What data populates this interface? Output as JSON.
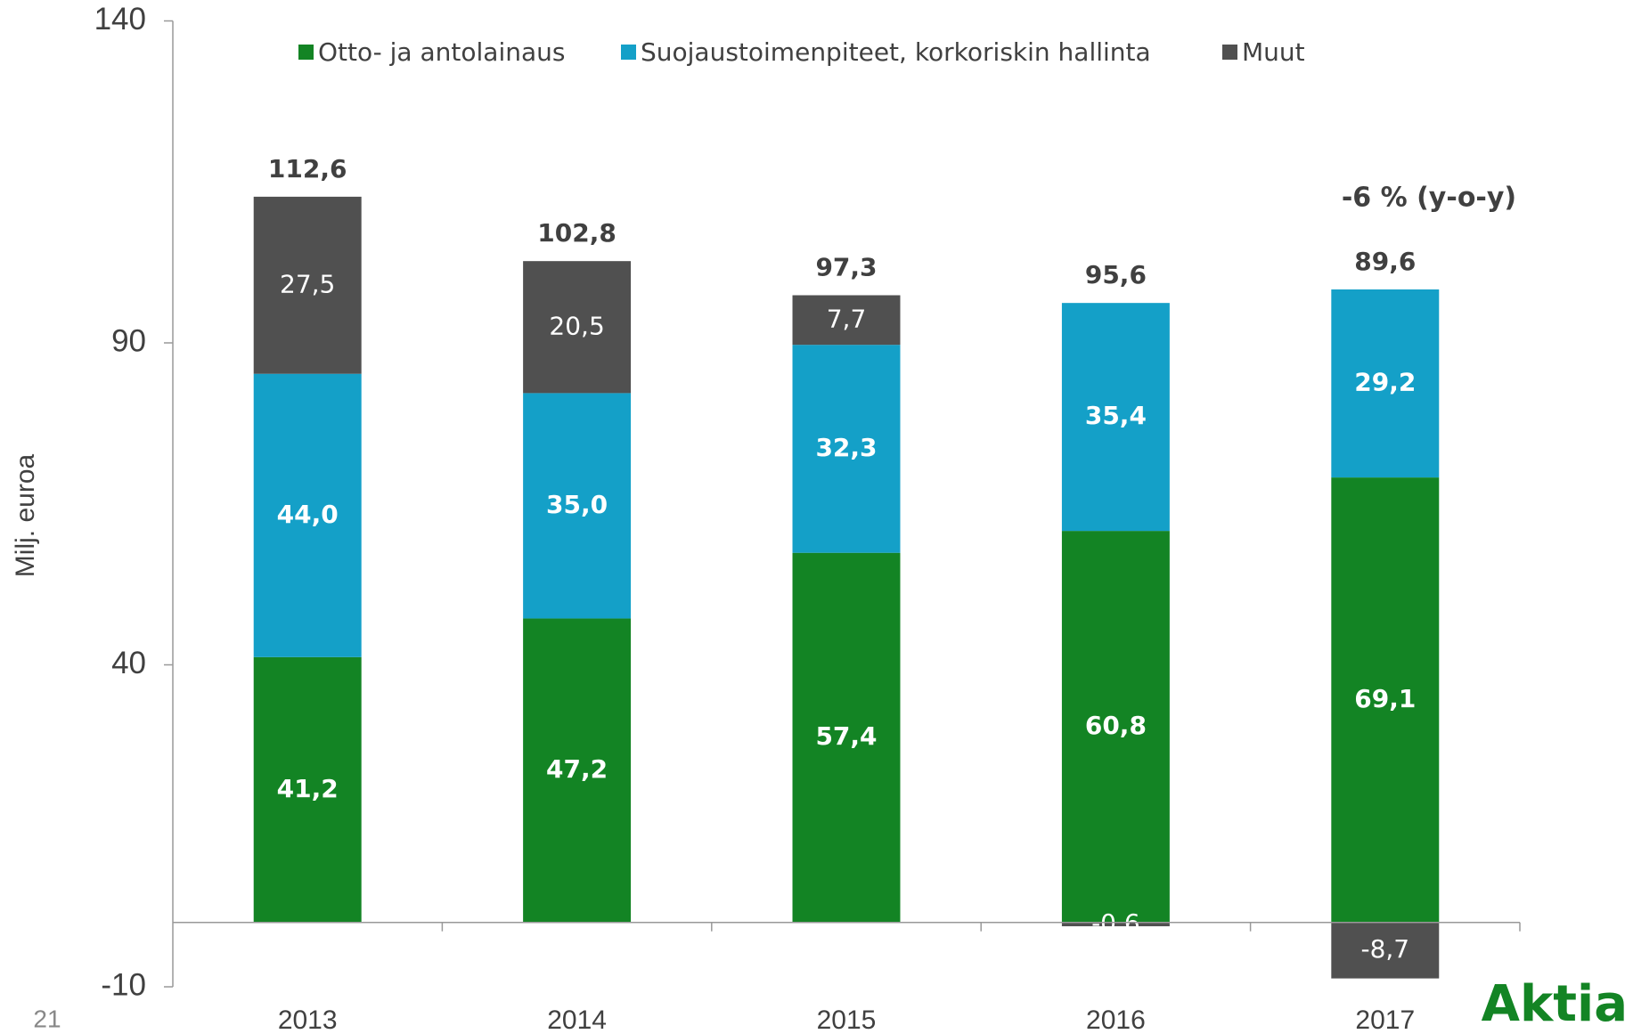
{
  "chart_data": {
    "type": "stacked_bar",
    "y_label": "Milj. euroa",
    "categories": [
      "2013",
      "2014",
      "2015",
      "2016",
      "2017"
    ],
    "series": [
      {
        "name": "Otto- ja antolainaus",
        "color": "#138424",
        "values": [
          41.2,
          47.2,
          57.4,
          60.8,
          69.1
        ],
        "value_labels": [
          "41,2",
          "47,2",
          "57,4",
          "60,8",
          "69,1"
        ]
      },
      {
        "name": "Suojaustoimenpiteet, korkoriskin hallinta",
        "color": "#14a0c8",
        "values": [
          44.0,
          35.0,
          32.3,
          35.4,
          29.2
        ],
        "value_labels": [
          "44,0",
          "35,0",
          "32,3",
          "35,4",
          "29,2"
        ]
      },
      {
        "name": "Muut",
        "color": "#505050",
        "values": [
          27.5,
          20.5,
          7.7,
          -0.6,
          -8.7
        ],
        "value_labels": [
          "27,5",
          "20,5",
          "7,7",
          "-0,6",
          "-8,7"
        ]
      }
    ],
    "totals": [
      112.6,
      102.8,
      97.3,
      95.6,
      89.6
    ],
    "totals_labels": [
      "112,6",
      "102,8",
      "97,3",
      "95,6",
      "89,6"
    ],
    "annotation": "-6 % (y-o-y)",
    "ylim": [
      -10,
      140
    ],
    "yticks": [
      -10,
      40,
      90,
      140
    ],
    "legend": "top"
  },
  "page_number": "21",
  "logo": "Aktia"
}
